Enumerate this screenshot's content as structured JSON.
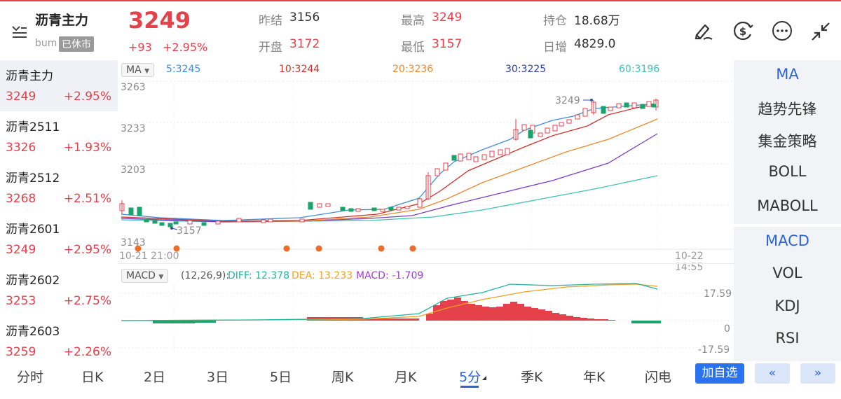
{
  "header": {
    "title": "沥青主力",
    "code": "bum",
    "status_badge": "已休市",
    "price": "3249",
    "change": "+93",
    "change_pct": "+2.95%",
    "stats": [
      {
        "label": "昨结",
        "value": "3156",
        "color": "dark"
      },
      {
        "label": "开盘",
        "value": "3172",
        "color": "red"
      },
      {
        "label": "最高",
        "value": "3249",
        "color": "red"
      },
      {
        "label": "最低",
        "value": "3157",
        "color": "red"
      },
      {
        "label": "持仓",
        "value": "18.68万",
        "color": "dark"
      },
      {
        "label": "日增",
        "value": "4829.0",
        "color": "dark"
      }
    ],
    "icons": [
      "draw-icon",
      "currency-icon",
      "more-icon",
      "collapse-icon"
    ]
  },
  "watchlist": [
    {
      "name": "沥青主力",
      "price": "3249",
      "change": "+2.95%"
    },
    {
      "name": "沥青2511",
      "price": "3326",
      "change": "+1.93%"
    },
    {
      "name": "沥青2512",
      "price": "3268",
      "change": "+2.51%"
    },
    {
      "name": "沥青2601",
      "price": "3249",
      "change": "+2.95%"
    },
    {
      "name": "沥青2602",
      "price": "3253",
      "change": "+2.75%"
    },
    {
      "name": "沥青2603",
      "price": "3259",
      "change": "+2.26%"
    }
  ],
  "main_chart": {
    "indicator_pill": "MA",
    "ma_labels": [
      {
        "text": "5:3245",
        "color": "#3f8fd8"
      },
      {
        "text": "10:3244",
        "color": "#d2322d"
      },
      {
        "text": "20:3236",
        "color": "#f0892c"
      },
      {
        "text": "30:3225",
        "color": "#2b3fa8"
      },
      {
        "text": "60:3196",
        "color": "#3cc4b4"
      }
    ],
    "y_ticks": [
      "3263",
      "3233",
      "3203",
      "3143"
    ],
    "time_start": "10-21 21:00",
    "time_end": "10-22 14:55",
    "high_marker": "3249",
    "low_marker": "3157"
  },
  "macd_chart": {
    "indicator_pill": "MACD",
    "params": "(12,26,9):",
    "diff": "DIFF: 12.378",
    "dea": "DEA: 13.233",
    "macd": "MACD: -1.709",
    "diff_color": "#1fb5a3",
    "dea_color": "#f0a020",
    "macd_color": "#a13fd1",
    "y_ticks": [
      "17.59",
      "0",
      "-17.59"
    ]
  },
  "right_panel": {
    "items": [
      "MA",
      "趋势先锋",
      "集金策略",
      "BOLL",
      "MABOLL",
      "MACD",
      "VOL",
      "KDJ",
      "RSI"
    ]
  },
  "bottom_tabs": {
    "items": [
      "分时",
      "日K",
      "2日",
      "3日",
      "5日",
      "周K",
      "月K",
      "5分",
      "季K",
      "年K",
      "闪电"
    ],
    "active": "5分",
    "add_button": "加自选",
    "prev_button": "«",
    "next_button": "»"
  },
  "colors": {
    "up": "#e5414b",
    "down": "#1aa36b",
    "accent": "#2b65d9"
  }
}
